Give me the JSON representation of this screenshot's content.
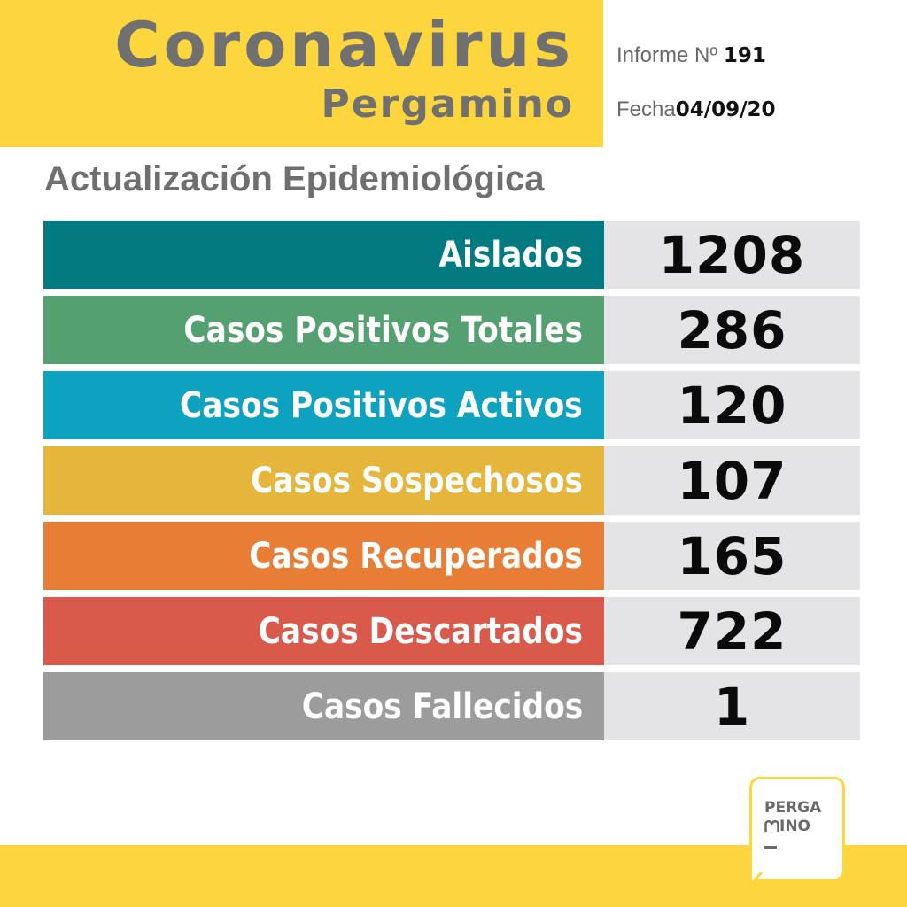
{
  "header": {
    "title": "Coronavirus",
    "subtitle": "Pergamino",
    "informe_label": "Informe Nº",
    "informe_number": "191",
    "fecha_label": "Fecha",
    "fecha_value": "04/09/20",
    "background_color": "#fcd63c"
  },
  "section": {
    "heading": "Actualización Epidemiológica"
  },
  "rows": [
    {
      "label": "Aislados",
      "value": "1208",
      "color": "#017a82"
    },
    {
      "label": "Casos Positivos Totales",
      "value": "286",
      "color": "#54a070"
    },
    {
      "label": "Casos Positivos Activos",
      "value": "120",
      "color": "#0da2bf"
    },
    {
      "label": "Casos Sospechosos",
      "value": "107",
      "color": "#e5b53c"
    },
    {
      "label": "Casos Recuperados",
      "value": "165",
      "color": "#e87e36"
    },
    {
      "label": "Casos Descartados",
      "value": "722",
      "color": "#d95a4b"
    },
    {
      "label": "Casos Fallecidos",
      "value": "1",
      "color": "#9c9c9c"
    }
  ],
  "logo": {
    "line1": "PERGA",
    "line2": "INO",
    "icon": "heart-m-icon"
  }
}
